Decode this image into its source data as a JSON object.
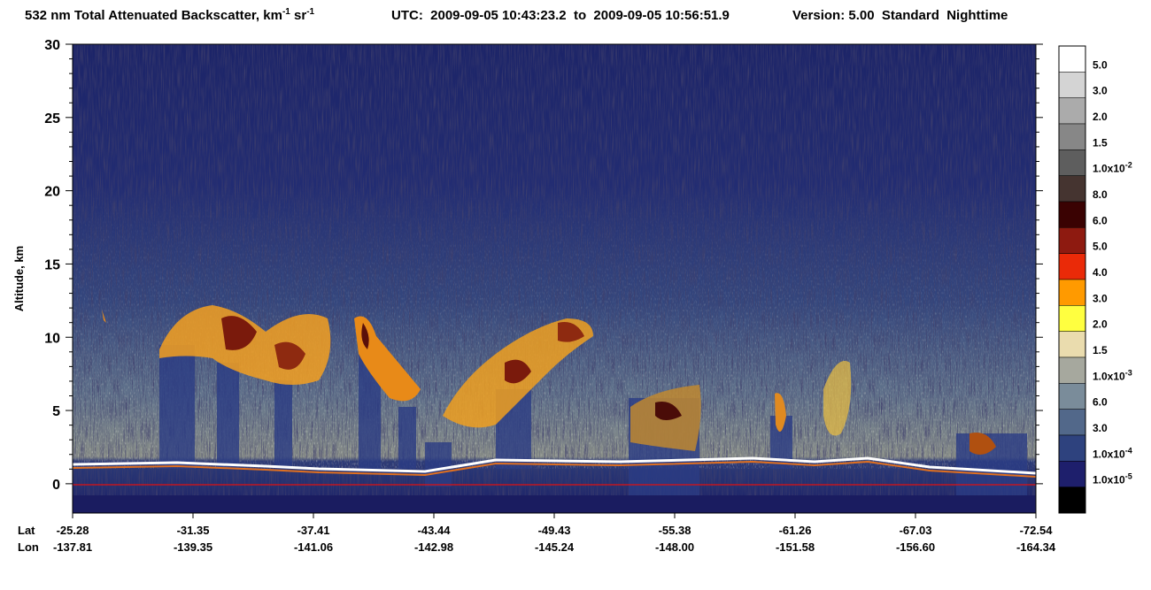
{
  "chart_data": {
    "type": "curtain",
    "title_parts": [
      "532 nm Total Attenuated Backscatter, km",
      "-1",
      " sr",
      "-1"
    ],
    "utc": "UTC:  2009-09-05 10:43:23.2  to  2009-09-05 10:56:51.9",
    "version": "Version: 5.00  Standard  Nighttime",
    "ylabel": "Altitude, km",
    "ylim": [
      -2,
      30
    ],
    "yticks": [
      0,
      5,
      10,
      15,
      20,
      25,
      30
    ],
    "lat_label": "Lat",
    "lon_label": "Lon",
    "lat": [
      "-25.28",
      "-31.35",
      "-37.41",
      "-43.44",
      "-49.43",
      "-55.38",
      "-61.26",
      "-67.03",
      "-72.54"
    ],
    "lon": [
      "-137.81",
      "-139.35",
      "-141.06",
      "-142.98",
      "-145.24",
      "-148.00",
      "-151.58",
      "-156.60",
      "-164.34"
    ],
    "colorbar": [
      {
        "color": "#ffffff",
        "label": "5.0"
      },
      {
        "color": "#d4d4d4",
        "label": "3.0"
      },
      {
        "color": "#ababab",
        "label": "2.0"
      },
      {
        "color": "#878787",
        "label": "1.5"
      },
      {
        "color": "#5e5e5e",
        "label": "1.0x10",
        "exp": "-2"
      },
      {
        "color": "#453430",
        "label": "8.0"
      },
      {
        "color": "#3a0202",
        "label": "6.0"
      },
      {
        "color": "#8e1a10",
        "label": "5.0"
      },
      {
        "color": "#ea2a08",
        "label": "4.0"
      },
      {
        "color": "#ff9a00",
        "label": "3.0"
      },
      {
        "color": "#ffff40",
        "label": "2.0"
      },
      {
        "color": "#eadcae",
        "label": "1.5"
      },
      {
        "color": "#a6a89e",
        "label": "1.0x10",
        "exp": "-3"
      },
      {
        "color": "#7a8c9a",
        "label": "6.0"
      },
      {
        "color": "#52688a",
        "label": "3.0"
      },
      {
        "color": "#2e427e",
        "label": "1.0x10",
        "exp": "-4"
      },
      {
        "color": "#1e1f6c",
        "label": "1.0x10",
        "exp": "-5"
      },
      {
        "color": "#000000",
        "label": null
      }
    ]
  }
}
